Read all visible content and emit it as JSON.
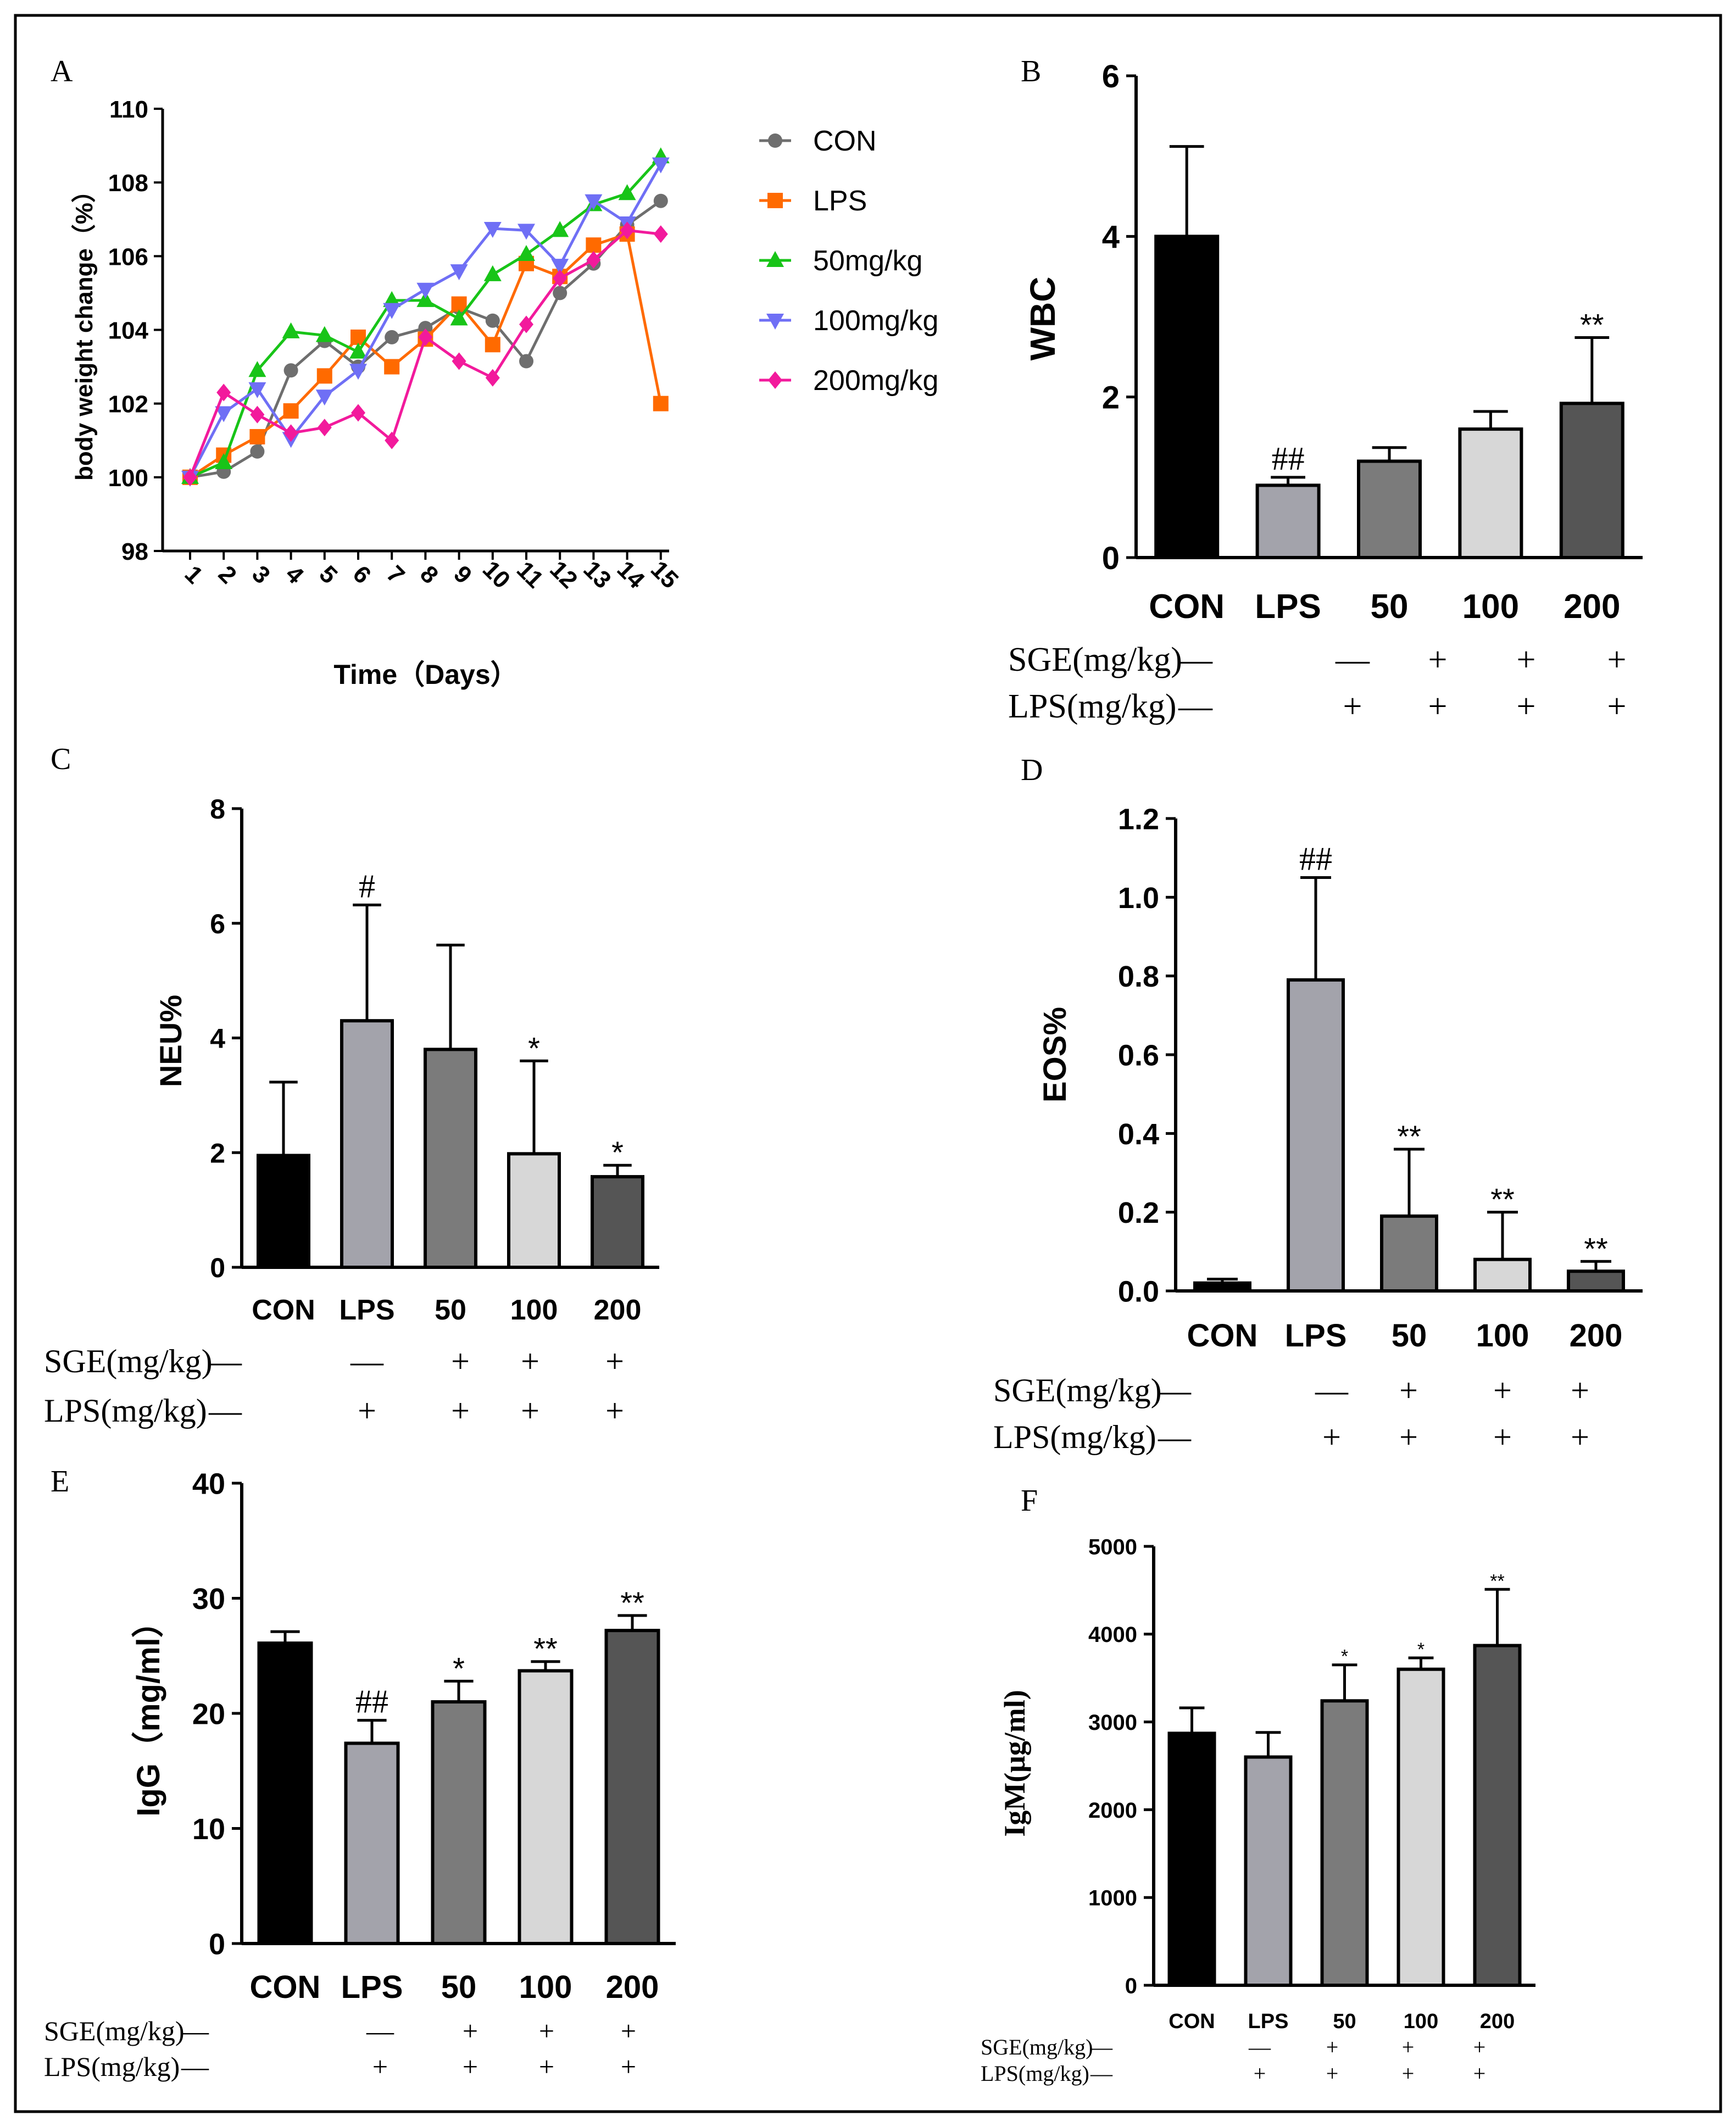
{
  "colors": {
    "frame": "#000000",
    "con": "#000000",
    "lps": "#a3a3ab",
    "d50": "#7b7b7b",
    "d100": "#d7d7d7",
    "d200": "#555555",
    "line_con": "#6e6e6e",
    "line_lps": "#ff6a00",
    "line_50": "#18c418",
    "line_100": "#6f6ff5",
    "line_200": "#f21a9c"
  },
  "treatment_rows": {
    "sge_label": "SGE(mg/kg)",
    "lps_label": "LPS(mg/kg)",
    "sge_marks": [
      "—",
      "—",
      "+",
      "+",
      "+"
    ],
    "lps_marks": [
      "—",
      "+",
      "+",
      "+",
      "+"
    ]
  },
  "chart_data": [
    {
      "panel": "A",
      "type": "line",
      "xlabel": "Time（Days）",
      "ylabel": "body weight change（%）",
      "x": [
        1,
        2,
        3,
        4,
        5,
        6,
        7,
        8,
        9,
        10,
        11,
        12,
        13,
        14,
        15
      ],
      "ylim": [
        98,
        110
      ],
      "yticks": [
        "98",
        "100",
        "102",
        "104",
        "106",
        "108",
        "110"
      ],
      "series": [
        {
          "name": "CON",
          "marker": "circle",
          "color_key": "line_con",
          "values": [
            100.0,
            100.15,
            100.7,
            102.9,
            103.7,
            103.0,
            103.8,
            104.05,
            104.6,
            104.25,
            103.15,
            105.0,
            105.8,
            106.85,
            107.5
          ]
        },
        {
          "name": "LPS",
          "marker": "square",
          "color_key": "line_lps",
          "values": [
            100.0,
            100.6,
            101.1,
            101.8,
            102.75,
            103.8,
            103.0,
            103.75,
            104.7,
            103.6,
            105.8,
            105.45,
            106.3,
            106.6,
            102.0
          ]
        },
        {
          "name": "50mg/kg",
          "marker": "triangle-up",
          "color_key": "line_50",
          "values": [
            100.0,
            100.4,
            102.9,
            103.95,
            103.85,
            103.4,
            104.8,
            104.8,
            104.3,
            105.5,
            106.05,
            106.7,
            107.4,
            107.7,
            108.7
          ]
        },
        {
          "name": "100mg/kg",
          "marker": "triangle-down",
          "color_key": "line_100",
          "values": [
            100.0,
            101.75,
            102.4,
            101.05,
            102.2,
            102.9,
            104.55,
            105.1,
            105.6,
            106.75,
            106.7,
            105.75,
            107.5,
            106.9,
            108.5
          ]
        },
        {
          "name": "200mg/kg",
          "marker": "diamond",
          "color_key": "line_200",
          "values": [
            100.0,
            102.3,
            101.7,
            101.2,
            101.35,
            101.75,
            101.0,
            103.8,
            103.15,
            102.7,
            104.15,
            105.4,
            105.9,
            106.7,
            106.6
          ]
        }
      ]
    },
    {
      "panel": "B",
      "type": "bar",
      "ylabel": "WBC",
      "categories": [
        "CON",
        "LPS",
        "50",
        "100",
        "200"
      ],
      "values": [
        4.0,
        0.9,
        1.2,
        1.6,
        1.92
      ],
      "errors": [
        1.12,
        0.1,
        0.17,
        0.22,
        0.82
      ],
      "annotations": [
        "",
        "##",
        "",
        "",
        "**"
      ],
      "ylim": [
        0,
        6
      ],
      "yticks": [
        "0",
        "2",
        "4",
        "6"
      ]
    },
    {
      "panel": "C",
      "type": "bar",
      "ylabel": "NEU%",
      "categories": [
        "CON",
        "LPS",
        "50",
        "100",
        "200"
      ],
      "values": [
        1.95,
        4.3,
        3.8,
        1.98,
        1.58
      ],
      "errors": [
        1.28,
        2.02,
        1.82,
        1.62,
        0.2
      ],
      "annotations": [
        "",
        "#",
        "",
        "*",
        "*"
      ],
      "ylim": [
        0,
        8
      ],
      "yticks": [
        "0",
        "2",
        "4",
        "6",
        "8"
      ]
    },
    {
      "panel": "D",
      "type": "bar",
      "ylabel": "EOS%",
      "categories": [
        "CON",
        "LPS",
        "50",
        "100",
        "200"
      ],
      "values": [
        0.02,
        0.79,
        0.19,
        0.08,
        0.05
      ],
      "errors": [
        0.01,
        0.26,
        0.17,
        0.12,
        0.025
      ],
      "annotations": [
        "",
        "##",
        "**",
        "**",
        "**"
      ],
      "ylim": [
        0,
        1.2
      ],
      "yticks": [
        "0.0",
        "0.2",
        "0.4",
        "0.6",
        "0.8",
        "1.0",
        "1.2"
      ]
    },
    {
      "panel": "E",
      "type": "bar",
      "ylabel": "IgG（mg/ml）",
      "categories": [
        "CON",
        "LPS",
        "50",
        "100",
        "200"
      ],
      "values": [
        26.1,
        17.4,
        21.0,
        23.7,
        27.2
      ],
      "errors": [
        1.0,
        2.0,
        1.8,
        0.8,
        1.3
      ],
      "annotations": [
        "",
        "##",
        "*",
        "**",
        "**"
      ],
      "ylim": [
        0,
        40
      ],
      "yticks": [
        "0",
        "10",
        "20",
        "30",
        "40"
      ]
    },
    {
      "panel": "F",
      "type": "bar",
      "ylabel": "IgM(μg/ml)",
      "categories": [
        "CON",
        "LPS",
        "50",
        "100",
        "200"
      ],
      "values": [
        2870,
        2600,
        3240,
        3600,
        3870
      ],
      "errors": [
        290,
        280,
        410,
        130,
        640
      ],
      "annotations": [
        "",
        "",
        "*",
        "*",
        "**"
      ],
      "ylim": [
        0,
        5000
      ],
      "yticks": [
        "0",
        "1000",
        "2000",
        "3000",
        "4000",
        "5000"
      ]
    }
  ]
}
